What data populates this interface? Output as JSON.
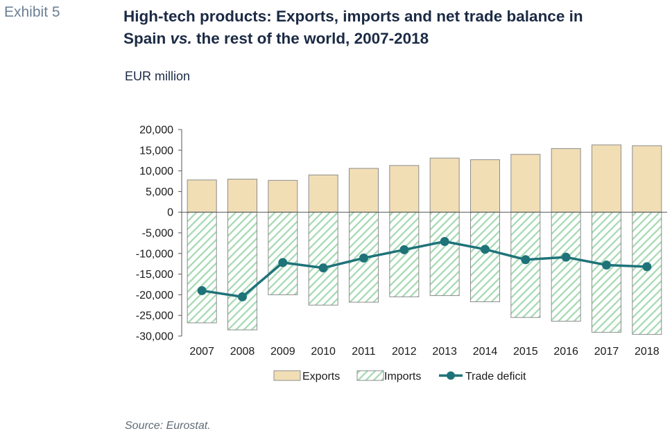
{
  "exhibit_label": "Exhibit 5",
  "title_line1": "High-tech products: Exports, imports and net trade balance in",
  "title_line2_pre": "Spain ",
  "title_line2_em": "vs.",
  "title_line2_post": " the rest of the world, 2007-2018",
  "units": "EUR million",
  "source": "Source: Eurostat.",
  "colors": {
    "exports_fill": "#f1deb5",
    "bar_stroke": "#8c8c8c",
    "imports_hatch": "#a5d9b2",
    "line": "#1e7379",
    "axis": "#555555",
    "text": "#1b2a44"
  },
  "chart_data": {
    "type": "bar",
    "categories": [
      "2007",
      "2008",
      "2009",
      "2010",
      "2011",
      "2012",
      "2013",
      "2014",
      "2015",
      "2016",
      "2017",
      "2018"
    ],
    "series": [
      {
        "name": "Exports",
        "kind": "bar",
        "values": [
          7800,
          8000,
          7700,
          9000,
          10600,
          11300,
          13100,
          12700,
          14000,
          15400,
          16300,
          16100
        ]
      },
      {
        "name": "Imports",
        "kind": "bar-hatched",
        "values": [
          -26800,
          -28500,
          -20000,
          -22500,
          -21800,
          -20500,
          -20200,
          -21700,
          -25500,
          -26400,
          -29100,
          -29600
        ]
      },
      {
        "name": "Trade deficit",
        "kind": "line",
        "values": [
          -19000,
          -20500,
          -12200,
          -13500,
          -11100,
          -9100,
          -7100,
          -9000,
          -11500,
          -10900,
          -12800,
          -13200
        ]
      }
    ],
    "ylim": [
      -30000,
      20000
    ],
    "yticks": [
      20000,
      15000,
      10000,
      5000,
      0,
      -5000,
      -10000,
      -15000,
      -20000,
      -25000,
      -30000
    ],
    "ytick_labels": [
      "20,000",
      "15,000",
      "10,000",
      "5,000",
      "0",
      "-5,000",
      "-10,000",
      "-15,000",
      "-20,000",
      "-25,000",
      "-30,000"
    ],
    "grid": false,
    "legend_position": "bottom"
  }
}
